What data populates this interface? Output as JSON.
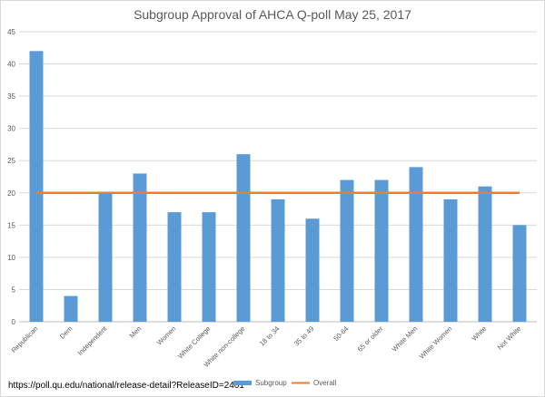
{
  "source_url": "https://poll.qu.edu/national/release-detail?ReleaseID=2461",
  "colors": {
    "bar": "#5b9bd5",
    "line": "#ed7d31",
    "grid": "#d9d9d9",
    "axis": "#bfbfbf"
  },
  "chart_data": {
    "type": "bar",
    "title": "Subgroup Approval of AHCA Q-poll May 25, 2017",
    "xlabel": "",
    "ylabel": "",
    "ylim": [
      0,
      45
    ],
    "yticks": [
      0,
      5,
      10,
      15,
      20,
      25,
      30,
      35,
      40,
      45
    ],
    "grid": true,
    "legend": "bottom",
    "categories": [
      "Republican",
      "Dem",
      "Independent",
      "Men",
      "Women",
      "White College",
      "White non-college",
      "18 to 34",
      "35 to 49",
      "50-64",
      "65 or older",
      "White Men",
      "White Women",
      "White",
      "Not White"
    ],
    "series": [
      {
        "name": "Subgroup",
        "type": "bar",
        "values": [
          42,
          4,
          20,
          23,
          17,
          17,
          26,
          19,
          16,
          22,
          22,
          24,
          19,
          21,
          15
        ]
      },
      {
        "name": "Overall",
        "type": "line",
        "values": [
          20,
          20,
          20,
          20,
          20,
          20,
          20,
          20,
          20,
          20,
          20,
          20,
          20,
          20,
          20
        ]
      }
    ]
  }
}
